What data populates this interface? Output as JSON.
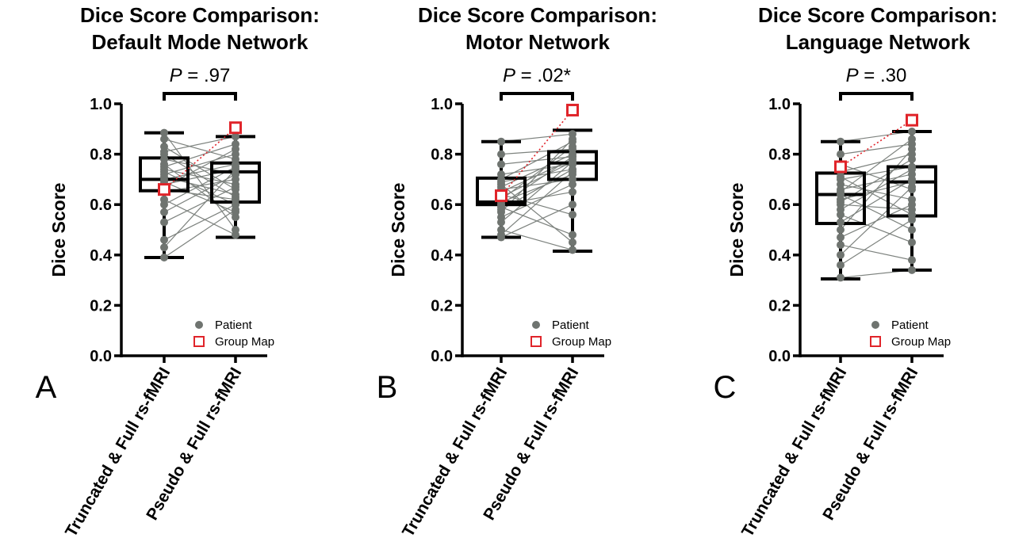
{
  "chart_data": [
    {
      "type": "box",
      "panel_label": "A",
      "title_line1": "Dice Score Comparison:",
      "title_line2": "Default Mode Network",
      "p_prefix": "P",
      "p_value": " = .97",
      "ylabel": "Dice Score",
      "ylim": [
        0,
        1
      ],
      "yticks": [
        "0.0",
        "0.2",
        "0.4",
        "0.6",
        "0.8",
        "1.0"
      ],
      "categories": [
        "Truncated & Full rs-fMRI",
        "Pseudo & Full rs-fMRI"
      ],
      "boxes": [
        {
          "min": 0.39,
          "q1": 0.655,
          "median": 0.7,
          "q3": 0.785,
          "max": 0.885
        },
        {
          "min": 0.47,
          "q1": 0.61,
          "median": 0.73,
          "q3": 0.765,
          "max": 0.87
        }
      ],
      "patients": {
        "name": "Patient",
        "color": "#6f7470",
        "pairs": [
          [
            0.885,
            0.5
          ],
          [
            0.86,
            0.78
          ],
          [
            0.83,
            0.66
          ],
          [
            0.81,
            0.87
          ],
          [
            0.8,
            0.63
          ],
          [
            0.78,
            0.72
          ],
          [
            0.76,
            0.55
          ],
          [
            0.75,
            0.84
          ],
          [
            0.74,
            0.68
          ],
          [
            0.73,
            0.6
          ],
          [
            0.72,
            0.8
          ],
          [
            0.71,
            0.64
          ],
          [
            0.7,
            0.76
          ],
          [
            0.69,
            0.57
          ],
          [
            0.68,
            0.74
          ],
          [
            0.67,
            0.82
          ],
          [
            0.66,
            0.62
          ],
          [
            0.65,
            0.7
          ],
          [
            0.62,
            0.48
          ],
          [
            0.6,
            0.75
          ],
          [
            0.57,
            0.72
          ],
          [
            0.53,
            0.67
          ],
          [
            0.46,
            0.6
          ],
          [
            0.43,
            0.74
          ],
          [
            0.39,
            0.58
          ]
        ]
      },
      "group_map": {
        "name": "Group Map",
        "color": "#e0242a",
        "values": [
          0.66,
          0.905
        ]
      }
    },
    {
      "type": "box",
      "panel_label": "B",
      "title_line1": "Dice Score Comparison:",
      "title_line2": "Motor Network",
      "p_prefix": "P",
      "p_value": " = .02*",
      "ylabel": "Dice Score",
      "ylim": [
        0,
        1
      ],
      "yticks": [
        "0.0",
        "0.2",
        "0.4",
        "0.6",
        "0.8",
        "1.0"
      ],
      "categories": [
        "Truncated & Full rs-fMRI",
        "Pseudo & Full rs-fMRI"
      ],
      "boxes": [
        {
          "min": 0.47,
          "q1": 0.6,
          "median": 0.61,
          "q3": 0.705,
          "max": 0.85
        },
        {
          "min": 0.415,
          "q1": 0.7,
          "median": 0.765,
          "q3": 0.81,
          "max": 0.895
        }
      ],
      "patients": {
        "name": "Patient",
        "color": "#6f7470",
        "pairs": [
          [
            0.85,
            0.88
          ],
          [
            0.8,
            0.82
          ],
          [
            0.76,
            0.79
          ],
          [
            0.72,
            0.76
          ],
          [
            0.7,
            0.85
          ],
          [
            0.69,
            0.74
          ],
          [
            0.68,
            0.45
          ],
          [
            0.67,
            0.8
          ],
          [
            0.66,
            0.7
          ],
          [
            0.65,
            0.78
          ],
          [
            0.64,
            0.56
          ],
          [
            0.63,
            0.77
          ],
          [
            0.62,
            0.83
          ],
          [
            0.61,
            0.72
          ],
          [
            0.6,
            0.65
          ],
          [
            0.6,
            0.79
          ],
          [
            0.59,
            0.48
          ],
          [
            0.58,
            0.74
          ],
          [
            0.57,
            0.86
          ],
          [
            0.55,
            0.68
          ],
          [
            0.53,
            0.77
          ],
          [
            0.5,
            0.42
          ],
          [
            0.48,
            0.73
          ],
          [
            0.47,
            0.6
          ]
        ]
      },
      "group_map": {
        "name": "Group Map",
        "color": "#e0242a",
        "values": [
          0.635,
          0.975
        ]
      }
    },
    {
      "type": "box",
      "panel_label": "C",
      "title_line1": "Dice Score Comparison:",
      "title_line2": "Language Network",
      "p_prefix": "P",
      "p_value": " = .30",
      "ylabel": "Dice Score",
      "ylim": [
        0,
        1
      ],
      "yticks": [
        "0.0",
        "0.2",
        "0.4",
        "0.6",
        "0.8",
        "1.0"
      ],
      "categories": [
        "Truncated & Full rs-fMRI",
        "Pseudo & Full rs-fMRI"
      ],
      "boxes": [
        {
          "min": 0.305,
          "q1": 0.525,
          "median": 0.64,
          "q3": 0.725,
          "max": 0.85
        },
        {
          "min": 0.34,
          "q1": 0.555,
          "median": 0.69,
          "q3": 0.75,
          "max": 0.89
        }
      ],
      "patients": {
        "name": "Patient",
        "color": "#6f7470",
        "pairs": [
          [
            0.85,
            0.89
          ],
          [
            0.8,
            0.84
          ],
          [
            0.76,
            0.66
          ],
          [
            0.73,
            0.8
          ],
          [
            0.71,
            0.56
          ],
          [
            0.7,
            0.75
          ],
          [
            0.68,
            0.62
          ],
          [
            0.66,
            0.72
          ],
          [
            0.65,
            0.86
          ],
          [
            0.64,
            0.5
          ],
          [
            0.62,
            0.69
          ],
          [
            0.61,
            0.78
          ],
          [
            0.6,
            0.58
          ],
          [
            0.58,
            0.74
          ],
          [
            0.56,
            0.45
          ],
          [
            0.53,
            0.7
          ],
          [
            0.5,
            0.82
          ],
          [
            0.47,
            0.6
          ],
          [
            0.44,
            0.38
          ],
          [
            0.4,
            0.67
          ],
          [
            0.36,
            0.54
          ],
          [
            0.31,
            0.34
          ]
        ]
      },
      "group_map": {
        "name": "Group Map",
        "color": "#e0242a",
        "values": [
          0.75,
          0.935
        ]
      }
    }
  ]
}
